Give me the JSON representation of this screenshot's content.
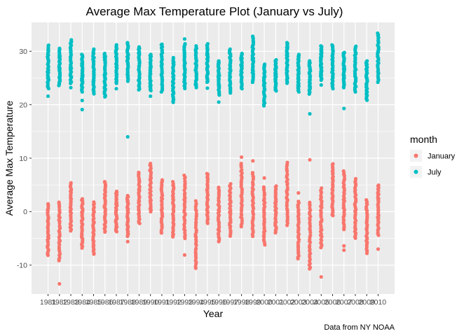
{
  "chart_data": {
    "type": "scatter",
    "title": "Average Max Temperature Plot (January vs July)",
    "xlabel": "Year",
    "ylabel": "Average Max Temperature",
    "caption": "Data from NY NOAA",
    "xlim": [
      1979.55,
      2011.45
    ],
    "ylim": [
      -15.4,
      35.4
    ],
    "y_ticks": [
      -10,
      0,
      10,
      20,
      30
    ],
    "x_ticks": [
      1981,
      1982,
      1983,
      1984,
      1985,
      1986,
      1987,
      1988,
      1989,
      1990,
      1991,
      1992,
      1993,
      1994,
      1995,
      1996,
      1997,
      1998,
      1999,
      2000,
      2001,
      2002,
      2003,
      2004,
      2005,
      2006,
      2007,
      2008,
      2009,
      2010
    ],
    "grid": true,
    "legend_position": "right",
    "legend_title": "month",
    "series": [
      {
        "name": "January",
        "color": "#F8766D",
        "points": [
          {
            "x": 1981,
            "low": -8.2,
            "high": 1.5
          },
          {
            "x": 1982,
            "low": -9.2,
            "high": 1.8
          },
          {
            "x": 1983,
            "low": -3.6,
            "high": 5.4
          },
          {
            "x": 1984,
            "low": -6.8,
            "high": 2.4
          },
          {
            "x": 1985,
            "low": -8.0,
            "high": 1.8
          },
          {
            "x": 1986,
            "low": -3.8,
            "high": 5.6
          },
          {
            "x": 1987,
            "low": -3.8,
            "high": 3.8
          },
          {
            "x": 1988,
            "low": -4.6,
            "high": 3.0
          },
          {
            "x": 1989,
            "low": -2.2,
            "high": 7.4
          },
          {
            "x": 1990,
            "low": 0.0,
            "high": 9.0
          },
          {
            "x": 1991,
            "low": -4.0,
            "high": 6.0
          },
          {
            "x": 1992,
            "low": -4.8,
            "high": 5.6
          },
          {
            "x": 1993,
            "low": -5.0,
            "high": 6.8
          },
          {
            "x": 1994,
            "low": -10.6,
            "high": 2.0
          },
          {
            "x": 1995,
            "low": -2.2,
            "high": 7.2
          },
          {
            "x": 1996,
            "low": -5.6,
            "high": 4.6
          },
          {
            "x": 1997,
            "low": -4.6,
            "high": 5.2
          },
          {
            "x": 1998,
            "low": -2.8,
            "high": 9.0
          },
          {
            "x": 1999,
            "low": -4.6,
            "high": 7.4
          },
          {
            "x": 2000,
            "low": -6.2,
            "high": 4.6
          },
          {
            "x": 2001,
            "low": -4.0,
            "high": 4.8
          },
          {
            "x": 2002,
            "low": -2.6,
            "high": 9.2
          },
          {
            "x": 2003,
            "low": -8.8,
            "high": 2.0
          },
          {
            "x": 2004,
            "low": -10.8,
            "high": 1.8
          },
          {
            "x": 2005,
            "low": -6.8,
            "high": 4.4
          },
          {
            "x": 2006,
            "low": -0.8,
            "high": 9.0
          },
          {
            "x": 2007,
            "low": -3.4,
            "high": 7.6
          },
          {
            "x": 2008,
            "low": -5.0,
            "high": 6.2
          },
          {
            "x": 2009,
            "low": -7.8,
            "high": 2.2
          },
          {
            "x": 2010,
            "low": -4.4,
            "high": 5.0
          }
        ],
        "outliers": [
          {
            "x": 1982,
            "y": -13.5
          },
          {
            "x": 1988,
            "y": -5.6
          },
          {
            "x": 1993,
            "y": -8.1
          },
          {
            "x": 1998,
            "y": 10.2
          },
          {
            "x": 1999,
            "y": 9.5
          },
          {
            "x": 2000,
            "y": 6.3
          },
          {
            "x": 2003,
            "y": 3.5
          },
          {
            "x": 2004,
            "y": 9.7
          },
          {
            "x": 2005,
            "y": -12.2
          },
          {
            "x": 2007,
            "y": -6.4
          },
          {
            "x": 2007,
            "y": -7.2
          },
          {
            "x": 2010,
            "y": -7.0
          }
        ]
      },
      {
        "name": "July",
        "color": "#00BFC4",
        "points": [
          {
            "x": 1981,
            "low": 23.0,
            "high": 31.2
          },
          {
            "x": 1982,
            "low": 23.6,
            "high": 30.6
          },
          {
            "x": 1983,
            "low": 24.0,
            "high": 32.2
          },
          {
            "x": 1984,
            "low": 22.4,
            "high": 29.4
          },
          {
            "x": 1985,
            "low": 22.0,
            "high": 30.4
          },
          {
            "x": 1986,
            "low": 21.4,
            "high": 29.6
          },
          {
            "x": 1987,
            "low": 24.0,
            "high": 31.2
          },
          {
            "x": 1988,
            "low": 24.4,
            "high": 31.6
          },
          {
            "x": 1989,
            "low": 22.8,
            "high": 30.8
          },
          {
            "x": 1990,
            "low": 22.6,
            "high": 29.4
          },
          {
            "x": 1991,
            "low": 22.4,
            "high": 31.4
          },
          {
            "x": 1992,
            "low": 20.4,
            "high": 28.8
          },
          {
            "x": 1993,
            "low": 23.0,
            "high": 31.4
          },
          {
            "x": 1994,
            "low": 23.2,
            "high": 31.0
          },
          {
            "x": 1995,
            "low": 24.2,
            "high": 31.4
          },
          {
            "x": 1996,
            "low": 21.8,
            "high": 28.2
          },
          {
            "x": 1997,
            "low": 22.2,
            "high": 30.4
          },
          {
            "x": 1998,
            "low": 23.0,
            "high": 29.6
          },
          {
            "x": 1999,
            "low": 24.2,
            "high": 32.8
          },
          {
            "x": 2000,
            "low": 19.8,
            "high": 27.6
          },
          {
            "x": 2001,
            "low": 22.6,
            "high": 28.4
          },
          {
            "x": 2002,
            "low": 24.0,
            "high": 31.6
          },
          {
            "x": 2003,
            "low": 22.4,
            "high": 29.4
          },
          {
            "x": 2004,
            "low": 22.0,
            "high": 28.2
          },
          {
            "x": 2005,
            "low": 24.6,
            "high": 31.0
          },
          {
            "x": 2006,
            "low": 23.0,
            "high": 31.2
          },
          {
            "x": 2007,
            "low": 23.2,
            "high": 29.8
          },
          {
            "x": 2008,
            "low": 22.4,
            "high": 31.0
          },
          {
            "x": 2009,
            "low": 20.8,
            "high": 28.2
          },
          {
            "x": 2010,
            "low": 24.2,
            "high": 33.4
          }
        ],
        "outliers": [
          {
            "x": 1981,
            "y": 21.6
          },
          {
            "x": 1983,
            "y": 23.2
          },
          {
            "x": 1984,
            "y": 19.1
          },
          {
            "x": 1984,
            "y": 20.8
          },
          {
            "x": 1987,
            "y": 23.0
          },
          {
            "x": 1988,
            "y": 14.0
          },
          {
            "x": 1990,
            "y": 21.6
          },
          {
            "x": 1993,
            "y": 32.3
          },
          {
            "x": 1995,
            "y": 23.1
          },
          {
            "x": 1996,
            "y": 20.5
          },
          {
            "x": 2004,
            "y": 18.3
          },
          {
            "x": 2005,
            "y": 23.7
          },
          {
            "x": 2007,
            "y": 19.3
          }
        ]
      }
    ]
  }
}
